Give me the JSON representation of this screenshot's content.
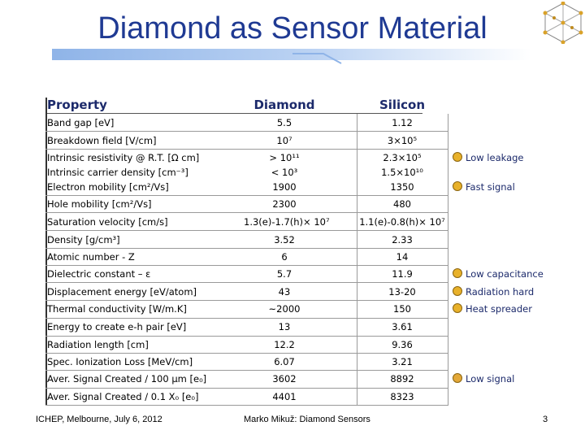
{
  "slide": {
    "title": "Diamond as Sensor Material",
    "footer_left": "ICHEP, Melbourne, July 6, 2012",
    "footer_center": "Marko Mikuž: Diamond Sensors",
    "page_number": "3"
  },
  "table": {
    "headers": {
      "property": "Property",
      "diamond": "Diamond",
      "silicon": "Silicon"
    },
    "rows": [
      {
        "property": "Band gap [eV]",
        "diamond": "5.5",
        "silicon": "1.12"
      },
      {
        "property": "Breakdown field [V/cm]",
        "diamond": "10⁷",
        "silicon": "3×10⁵"
      },
      {
        "property": "Intrinsic resistivity @ R.T. [Ω cm]",
        "diamond": "> 10¹¹",
        "silicon": "2.3×10⁵"
      },
      {
        "property": "Intrinsic carrier density [cm⁻³]",
        "diamond": "< 10³",
        "silicon": "1.5×10¹⁰"
      },
      {
        "property": "Electron mobility [cm²/Vs]",
        "diamond": "1900",
        "silicon": "1350"
      },
      {
        "property": "Hole mobility [cm²/Vs]",
        "diamond": "2300",
        "silicon": "480"
      },
      {
        "property": "Saturation velocity [cm/s]",
        "diamond": "1.3(e)-1.7(h)× 10⁷",
        "silicon": "1.1(e)-0.8(h)× 10⁷"
      },
      {
        "property": "Density [g/cm³]",
        "diamond": "3.52",
        "silicon": "2.33"
      },
      {
        "property": "Atomic number - Z",
        "diamond": "6",
        "silicon": "14"
      },
      {
        "property": "Dielectric constant – ε",
        "diamond": "5.7",
        "silicon": "11.9"
      },
      {
        "property": "Displacement energy [eV/atom]",
        "diamond": "43",
        "silicon": "13-20"
      },
      {
        "property": "Thermal conductivity [W/m.K]",
        "diamond": "~2000",
        "silicon": "150"
      },
      {
        "property": "Energy to create e-h pair [eV]",
        "diamond": "13",
        "silicon": "3.61"
      },
      {
        "property": "Radiation length [cm]",
        "diamond": "12.2",
        "silicon": "9.36"
      },
      {
        "property": "Spec. Ionization Loss [MeV/cm]",
        "diamond": "6.07",
        "silicon": "3.21"
      },
      {
        "property": "Aver. Signal Created / 100 μm [e₀]",
        "diamond": "3602",
        "silicon": "8892"
      },
      {
        "property": "Aver. Signal Created / 0.1 X₀ [e₀]",
        "diamond": "4401",
        "silicon": "8323"
      }
    ]
  },
  "notes": {
    "low_leakage": "Low leakage",
    "fast_signal": "Fast signal",
    "low_capacitance": "Low capacitance",
    "radiation_hard": "Radiation hard",
    "heat_spreader": "Heat spreader",
    "low_signal": "Low signal"
  },
  "icons": {
    "positive": "smiley-face-icon",
    "negative": "frowny-face-icon",
    "logo": "diamond-lattice-icon"
  },
  "colors": {
    "title": "#1f3a93",
    "header": "#1c2a6b",
    "smiley": "#e8b12a"
  }
}
